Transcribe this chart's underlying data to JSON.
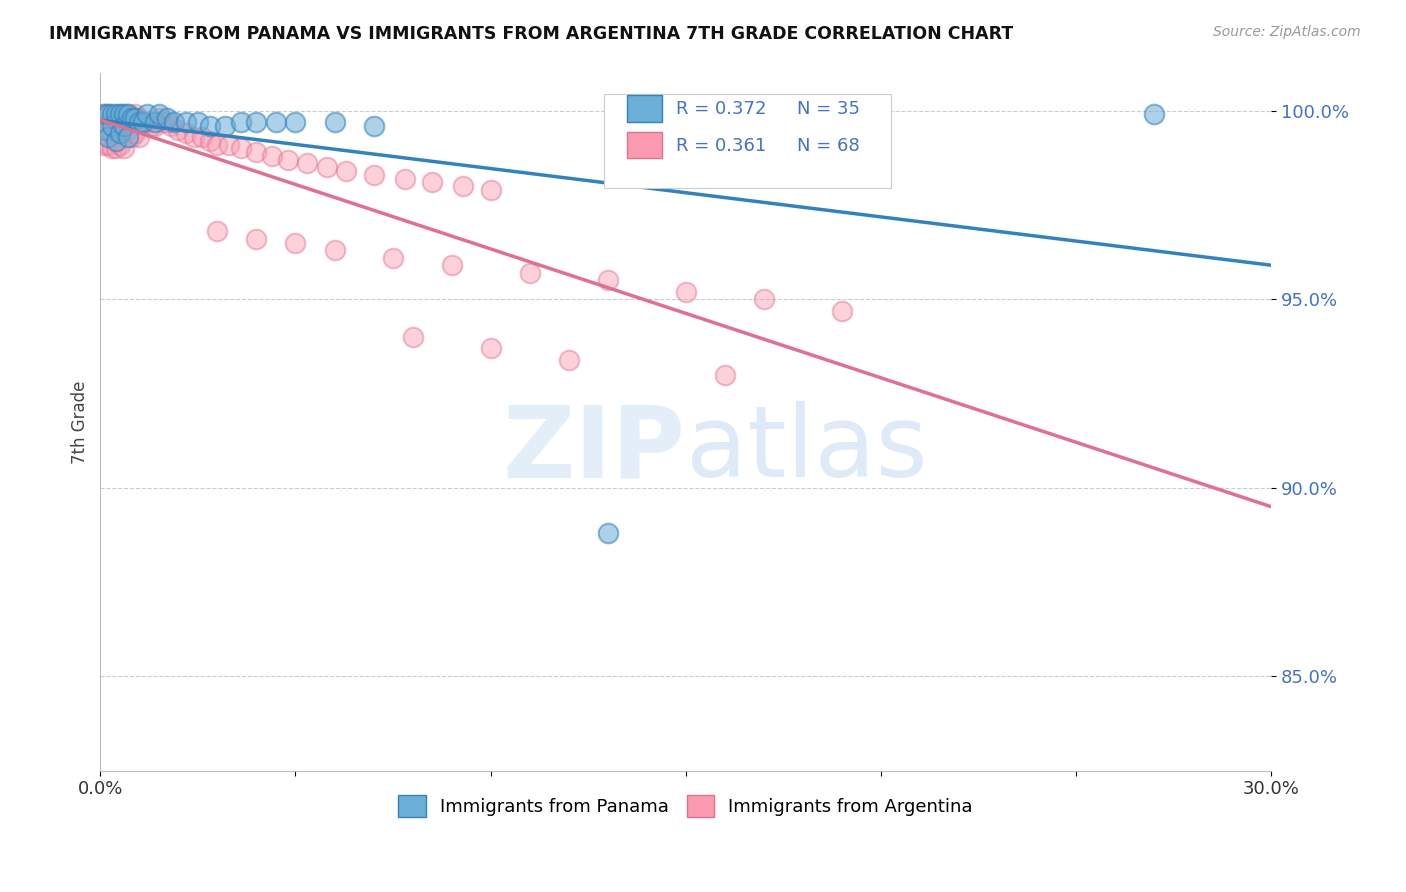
{
  "title": "IMMIGRANTS FROM PANAMA VS IMMIGRANTS FROM ARGENTINA 7TH GRADE CORRELATION CHART",
  "source": "Source: ZipAtlas.com",
  "ylabel": "7th Grade",
  "legend_panama": "Immigrants from Panama",
  "legend_argentina": "Immigrants from Argentina",
  "R_panama": 0.372,
  "N_panama": 35,
  "R_argentina": 0.361,
  "N_argentina": 68,
  "color_panama": "#6baed6",
  "color_argentina": "#fc9aaf",
  "color_panama_line": "#3182bd",
  "color_argentina_line": "#e07090",
  "xmin": 0.0,
  "xmax": 0.3,
  "ymin": 0.825,
  "ymax": 1.01,
  "yticks": [
    0.85,
    0.9,
    0.95,
    1.0
  ],
  "ytick_labels": [
    "85.0%",
    "90.0%",
    "95.0%",
    "100.0%"
  ],
  "panama_x": [
    0.001,
    0.002,
    0.002,
    0.003,
    0.003,
    0.004,
    0.004,
    0.005,
    0.005,
    0.006,
    0.006,
    0.007,
    0.007,
    0.008,
    0.009,
    0.01,
    0.011,
    0.012,
    0.013,
    0.015,
    0.016,
    0.018,
    0.02,
    0.022,
    0.025,
    0.028,
    0.03,
    0.035,
    0.04,
    0.045,
    0.05,
    0.06,
    0.07,
    0.13,
    0.27
  ],
  "panama_y": [
    0.997,
    0.999,
    0.993,
    0.999,
    0.995,
    0.998,
    0.991,
    0.997,
    0.994,
    0.998,
    0.996,
    0.999,
    0.992,
    0.997,
    0.996,
    0.995,
    0.994,
    0.999,
    0.993,
    0.998,
    0.997,
    0.996,
    0.999,
    0.995,
    0.994,
    0.993,
    0.992,
    0.999,
    0.998,
    0.997,
    0.996,
    0.995,
    0.994,
    0.888,
    0.999
  ],
  "argentina_x": [
    0.001,
    0.001,
    0.002,
    0.002,
    0.002,
    0.003,
    0.003,
    0.003,
    0.004,
    0.004,
    0.005,
    0.005,
    0.005,
    0.006,
    0.006,
    0.007,
    0.007,
    0.008,
    0.008,
    0.009,
    0.009,
    0.01,
    0.01,
    0.011,
    0.012,
    0.013,
    0.014,
    0.015,
    0.016,
    0.017,
    0.018,
    0.019,
    0.02,
    0.022,
    0.024,
    0.026,
    0.028,
    0.03,
    0.032,
    0.035,
    0.038,
    0.04,
    0.042,
    0.045,
    0.05,
    0.055,
    0.06,
    0.065,
    0.07,
    0.075,
    0.08,
    0.09,
    0.1,
    0.11,
    0.12,
    0.13,
    0.14,
    0.15,
    0.16,
    0.175,
    0.19,
    0.2,
    0.05,
    0.08,
    0.1,
    0.13,
    0.16,
    0.2
  ],
  "argentina_y": [
    0.998,
    0.994,
    0.999,
    0.995,
    0.991,
    0.998,
    0.994,
    0.99,
    0.997,
    0.993,
    0.999,
    0.995,
    0.991,
    0.998,
    0.994,
    0.999,
    0.992,
    0.997,
    0.993,
    0.999,
    0.994,
    0.998,
    0.993,
    0.997,
    0.996,
    0.995,
    0.994,
    0.998,
    0.997,
    0.996,
    0.995,
    0.994,
    0.993,
    0.992,
    0.991,
    0.99,
    0.989,
    0.988,
    0.987,
    0.986,
    0.985,
    0.984,
    0.983,
    0.982,
    0.981,
    0.98,
    0.979,
    0.978,
    0.977,
    0.976,
    0.975,
    0.974,
    0.973,
    0.972,
    0.971,
    0.97,
    0.969,
    0.968,
    0.967,
    0.966,
    0.965,
    0.964,
    0.965,
    0.96,
    0.955,
    0.95,
    0.945,
    0.94
  ]
}
